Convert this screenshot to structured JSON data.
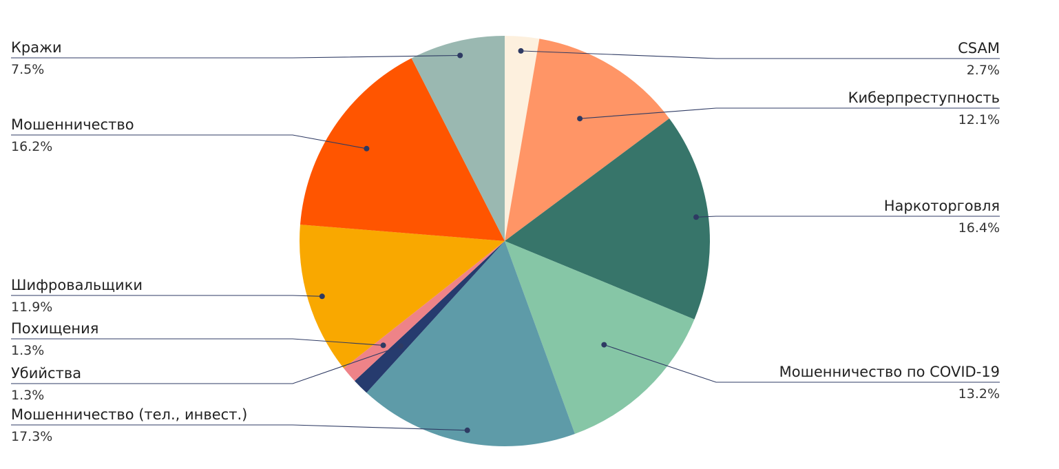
{
  "chart_data": {
    "type": "pie",
    "title": "",
    "slices": [
      {
        "label": "CSAM",
        "value": 2.7,
        "value_label": "2.7%",
        "color": "#FDF0DE"
      },
      {
        "label": "Киберпреступность",
        "value": 12.1,
        "value_label": "12.1%",
        "color": "#FF9566"
      },
      {
        "label": "Наркоторговля",
        "value": 16.4,
        "value_label": "16.4%",
        "color": "#37756A"
      },
      {
        "label": "Мошенничество по COVID-19",
        "value": 13.2,
        "value_label": "13.2%",
        "color": "#86C6A6"
      },
      {
        "label": "Мошенничество (тел., инвест.)",
        "value": 17.3,
        "value_label": "17.3%",
        "color": "#5E9BA8"
      },
      {
        "label": "Убийства",
        "value": 1.3,
        "value_label": "1.3%",
        "color": "#263B6E"
      },
      {
        "label": "Похищения",
        "value": 1.3,
        "value_label": "1.3%",
        "color": "#EE8388"
      },
      {
        "label": "Шифровальщики",
        "value": 11.9,
        "value_label": "11.9%",
        "color": "#F9A800"
      },
      {
        "label": "Мошенничество",
        "value": 16.2,
        "value_label": "16.2%",
        "color": "#FF5500"
      },
      {
        "label": "Кражи",
        "value": 7.5,
        "value_label": "7.5%",
        "color": "#9AB8B1"
      }
    ],
    "start_angle": "12 o'clock",
    "direction": "clockwise",
    "leader_line_color": "#2E3A63",
    "legend": "none"
  }
}
